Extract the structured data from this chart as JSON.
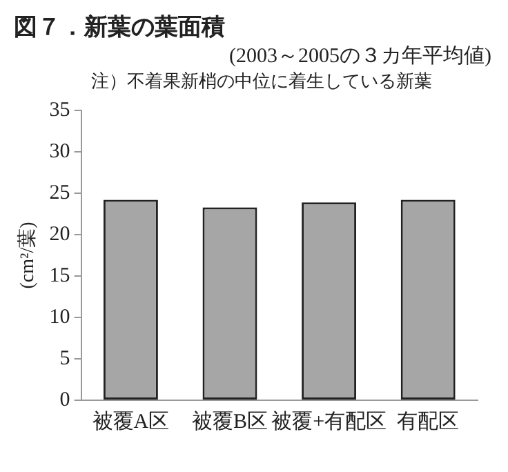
{
  "chart_data": {
    "type": "bar",
    "title": "図７．新葉の葉面積",
    "subtitle": "(2003～2005の３カ年平均値)",
    "annotations": [
      "注）不着果新梢の中位に着生している新葉"
    ],
    "ylabel": "(cm²/葉)",
    "categories": [
      "被覆A区",
      "被覆B区",
      "被覆+有配区",
      "有配区"
    ],
    "values": [
      24.2,
      23.3,
      23.9,
      24.2
    ],
    "color": "#a6a6a6",
    "ylim": [
      0,
      35
    ],
    "yticks": [
      0,
      5,
      10,
      15,
      20,
      25,
      30,
      35
    ],
    "grid": false,
    "legend": false
  }
}
